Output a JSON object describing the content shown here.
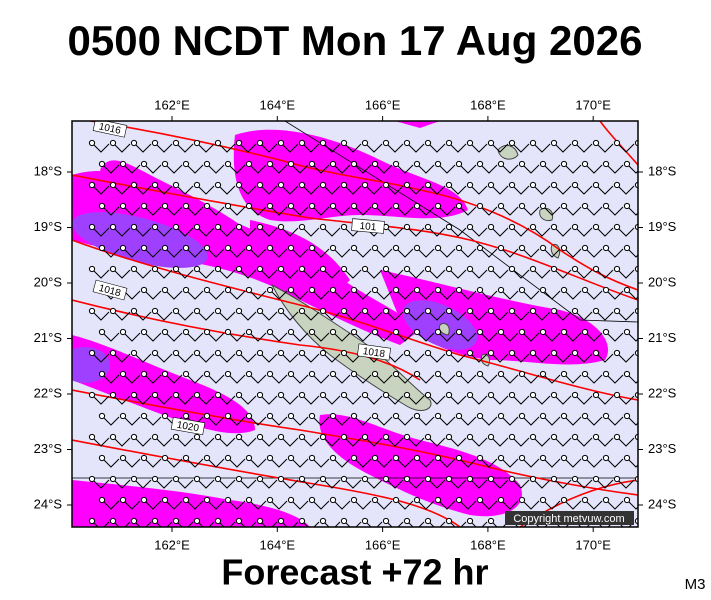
{
  "header": {
    "title": "0500 NCDT Mon 17 Aug 2026"
  },
  "map": {
    "lon_labels": [
      "162°E",
      "164°E",
      "166°E",
      "168°E",
      "170°E"
    ],
    "lat_labels": [
      "18°S",
      "19°S",
      "20°S",
      "21°S",
      "22°S",
      "23°S",
      "24°S"
    ],
    "isobar_labels": [
      "1016",
      "101",
      "1018",
      "1018",
      "1020"
    ],
    "copyright": "Copyright metvuw.com"
  },
  "footer": {
    "forecast": "Forecast +72 hr",
    "model": "M3"
  }
}
